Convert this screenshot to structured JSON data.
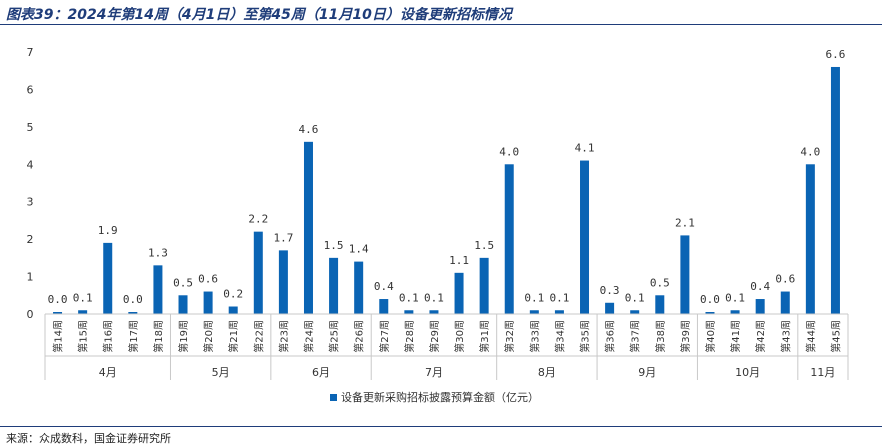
{
  "title": "图表39：2024年第14周（4月1日）至第45周（11月10日）设备更新招标情况",
  "source": "来源：众成数科，国金证券研究所",
  "colors": {
    "bar": "#0a64b4",
    "axis": "#c8c8c8",
    "title": "#1f3d7a"
  },
  "chart_data": {
    "type": "bar",
    "categories": [
      "第14周",
      "第15周",
      "第16周",
      "第17周",
      "第18周",
      "第19周",
      "第20周",
      "第21周",
      "第22周",
      "第23周",
      "第24周",
      "第25周",
      "第26周",
      "第27周",
      "第28周",
      "第29周",
      "第30周",
      "第31周",
      "第32周",
      "第33周",
      "第34周",
      "第35周",
      "第36周",
      "第37周",
      "第38周",
      "第39周",
      "第40周",
      "第41周",
      "第42周",
      "第43周",
      "第44周",
      "第45周"
    ],
    "groups": [
      {
        "label": "4月",
        "count": 5
      },
      {
        "label": "5月",
        "count": 4
      },
      {
        "label": "6月",
        "count": 4
      },
      {
        "label": "7月",
        "count": 5
      },
      {
        "label": "8月",
        "count": 4
      },
      {
        "label": "9月",
        "count": 4
      },
      {
        "label": "10月",
        "count": 4
      },
      {
        "label": "11月",
        "count": 2
      }
    ],
    "series": [
      {
        "name": "设备更新采购招标披露预算金额（亿元）",
        "values": [
          0.0,
          0.1,
          1.9,
          0.0,
          1.3,
          0.5,
          0.6,
          0.2,
          2.2,
          1.7,
          4.6,
          1.5,
          1.4,
          0.4,
          0.1,
          0.1,
          1.1,
          1.5,
          4.0,
          0.1,
          0.1,
          4.1,
          0.3,
          0.1,
          0.5,
          2.1,
          0.0,
          0.1,
          0.4,
          0.6,
          4.0,
          6.6
        ],
        "labels": [
          "0.0",
          "0.1",
          "1.9",
          "0.0",
          "1.3",
          "0.5",
          "0.6",
          "0.2",
          "2.2",
          "1.7",
          "4.6",
          "1.5",
          "1.4",
          "0.4",
          "0.1",
          "0.1",
          "1.1",
          "1.5",
          "4.0",
          "0.1",
          "0.1",
          "4.1",
          "0.3",
          "0.1",
          "0.5",
          "2.1",
          "0.0",
          "0.1",
          "0.4",
          "0.6",
          "4.0",
          "6.6"
        ]
      }
    ],
    "ylim": [
      0,
      7
    ],
    "yticks": [
      "0",
      "1",
      "2",
      "3",
      "4",
      "5",
      "6",
      "7"
    ],
    "legend_position": "bottom",
    "grid": false
  }
}
